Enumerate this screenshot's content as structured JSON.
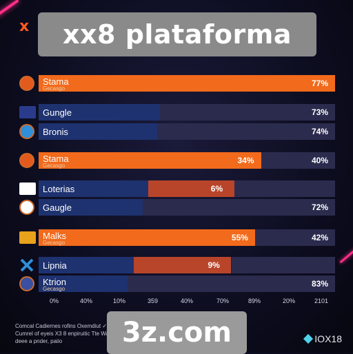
{
  "header": {
    "brand_mark": "x",
    "title": "xx8 plataforma"
  },
  "footer": {
    "domain": "3z.com",
    "footnote": "Comcal Cadiernes rofins Oxemdiut ✓ Cumrel of eyeis X3 8 enpiruitic Tte Wa & deee a pnder, paiio",
    "logo": "IOX18",
    "logo_icon": "gem-icon"
  },
  "chart_data": {
    "type": "bar",
    "orientation": "horizontal",
    "stacked": true,
    "title": "xx8 plataforma",
    "xlabel": "",
    "ylabel": "",
    "x_ticks": [
      "0%",
      "40%",
      "10%",
      "359",
      "40%",
      "70%",
      "89%",
      "20%",
      "2101"
    ],
    "grid": false,
    "legend": "none",
    "rows": [
      {
        "label": "Stama",
        "sub": "Gecasgo",
        "icon": "badge-icon",
        "icon_color": "#e25a1c",
        "mid_label": "",
        "right_label": "77%",
        "segments": [
          {
            "color": "#f26a1b",
            "from": 0,
            "to": 1.0
          }
        ]
      },
      {
        "label": "Gungle",
        "sub": "",
        "icon": "flag-icon",
        "icon_color": "#2a3b8c",
        "mid_label": "",
        "right_label": "73%",
        "segments": [
          {
            "color": "#1e3270",
            "from": 0,
            "to": 0.41
          },
          {
            "color": "#2b2b4e",
            "from": 0.41,
            "to": 1.0
          }
        ]
      },
      {
        "label": "Bronis",
        "sub": "",
        "icon": "globe-icon",
        "icon_color": "#2f8fd8",
        "mid_label": "",
        "right_label": "74%",
        "segments": [
          {
            "color": "#1e3270",
            "from": 0,
            "to": 0.4
          },
          {
            "color": "#2b2b4e",
            "from": 0.4,
            "to": 1.0
          }
        ]
      },
      {
        "label": "Stama",
        "sub": "Gecasgo",
        "icon": "badge-icon",
        "icon_color": "#e25a1c",
        "mid_label": "34%",
        "right_label": "40%",
        "segments": [
          {
            "color": "#f26a1b",
            "from": 0,
            "to": 0.75
          },
          {
            "color": "#2b2b4e",
            "from": 0.75,
            "to": 1.0
          }
        ]
      },
      {
        "label": "Loterias",
        "sub": "",
        "icon": "flag-icon",
        "icon_color": "#ffffff",
        "mid_label": "6%",
        "right_label": "",
        "segments": [
          {
            "color": "#1e3270",
            "from": 0,
            "to": 0.37
          },
          {
            "color": "#b8452a",
            "from": 0.37,
            "to": 0.66
          },
          {
            "color": "#2b2b4e",
            "from": 0.66,
            "to": 1.0
          }
        ]
      },
      {
        "label": "Gaugle",
        "sub": "",
        "icon": "globe-icon",
        "icon_color": "#ffffff",
        "mid_label": "",
        "right_label": "72%",
        "segments": [
          {
            "color": "#1e3270",
            "from": 0,
            "to": 0.35
          },
          {
            "color": "#2b2b4e",
            "from": 0.35,
            "to": 1.0
          }
        ]
      },
      {
        "label": "Malks",
        "sub": "Gecasgo",
        "icon": "flag-icon",
        "icon_color": "#e8a21c",
        "mid_label": "55%",
        "right_label": "42%",
        "segments": [
          {
            "color": "#f26a1b",
            "from": 0,
            "to": 0.73
          },
          {
            "color": "#2b2b4e",
            "from": 0.73,
            "to": 1.0
          }
        ]
      },
      {
        "label": "Lipnia",
        "sub": "",
        "icon": "cross-icon",
        "icon_color": "#2f8fd8",
        "mid_label": "9%",
        "right_label": "",
        "segments": [
          {
            "color": "#1e3270",
            "from": 0,
            "to": 0.32
          },
          {
            "color": "#b8452a",
            "from": 0.32,
            "to": 0.65
          },
          {
            "color": "#2b2b4e",
            "from": 0.65,
            "to": 1.0
          }
        ]
      },
      {
        "label": "Ktrion",
        "sub": "Gecasgo",
        "icon": "badge-icon",
        "icon_color": "#3a4fa0",
        "mid_label": "",
        "right_label": "83%",
        "segments": [
          {
            "color": "#1e3270",
            "from": 0,
            "to": 0.3
          },
          {
            "color": "#2b2b4e",
            "from": 0.3,
            "to": 1.0
          }
        ]
      }
    ]
  }
}
